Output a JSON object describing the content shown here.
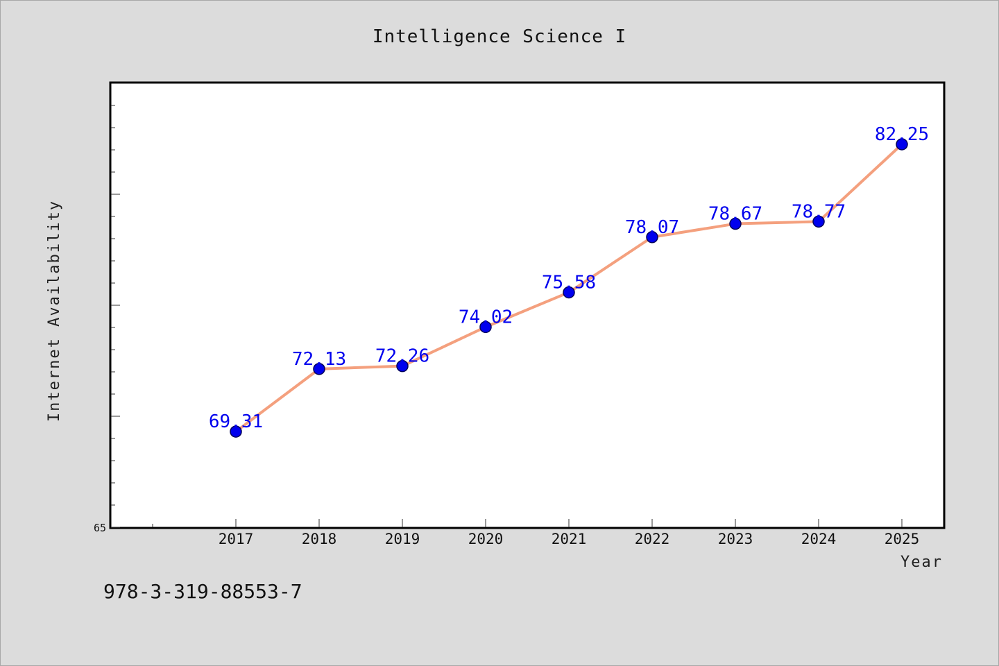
{
  "chart_data": {
    "type": "line",
    "title": "Intelligence Science I",
    "xlabel": "Year",
    "ylabel": "Internet Availability",
    "categories": [
      "2017",
      "2018",
      "2019",
      "2020",
      "2021",
      "2022",
      "2023",
      "2024",
      "2025"
    ],
    "series": [
      {
        "values": [
          69.31,
          72.13,
          72.26,
          74.02,
          75.58,
          78.07,
          78.67,
          78.77,
          82.25
        ],
        "labels": [
          "69.31",
          "72.13",
          "72.26",
          "74.02",
          "75.58",
          "78.07",
          "78.67",
          "78.77",
          "82.25"
        ],
        "line_color": "#f4a07e",
        "marker_color": "#0000ee"
      }
    ],
    "ylim": [
      65,
      85
    ],
    "y_tick_labels": [
      "65"
    ],
    "grid": false,
    "legend": "none"
  },
  "footer": {
    "identifier": "978-3-319-88553-7"
  },
  "colors": {
    "background": "#dcdcdc",
    "plot_background": "#ffffff",
    "line": "#f4a07e",
    "marker": "#0000ee",
    "data_label": "#0000ee"
  }
}
